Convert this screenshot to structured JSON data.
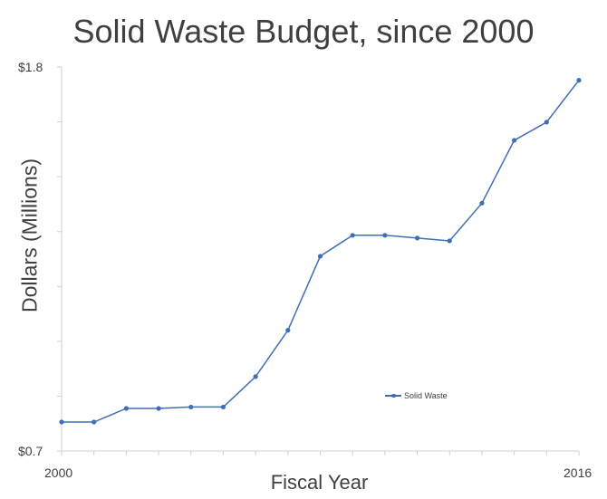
{
  "chart_data": {
    "type": "line",
    "title": "Solid Waste Budget, since 2000",
    "xlabel": "Fiscal Year",
    "ylabel": "Dollars (Millions)",
    "x": [
      2000,
      2001,
      2002,
      2003,
      2004,
      2005,
      2006,
      2007,
      2008,
      2009,
      2010,
      2011,
      2012,
      2013,
      2014,
      2015,
      2016
    ],
    "xlim": [
      2000,
      2016
    ],
    "ylim": [
      0.7,
      1.8
    ],
    "x_tick_labels": [
      "2000",
      "2016"
    ],
    "y_tick_labels": [
      "$1.8",
      "$0.7"
    ],
    "y_tick_count": 8,
    "series": [
      {
        "name": "Solid Waste",
        "color": "#3f6fb4",
        "values": [
          0.783,
          0.783,
          0.822,
          0.822,
          0.826,
          0.826,
          0.913,
          1.046,
          1.258,
          1.318,
          1.318,
          1.31,
          1.302,
          1.41,
          1.59,
          1.642,
          1.762
        ]
      }
    ],
    "legend": {
      "position": "inside-lower-right"
    },
    "grid": false
  }
}
